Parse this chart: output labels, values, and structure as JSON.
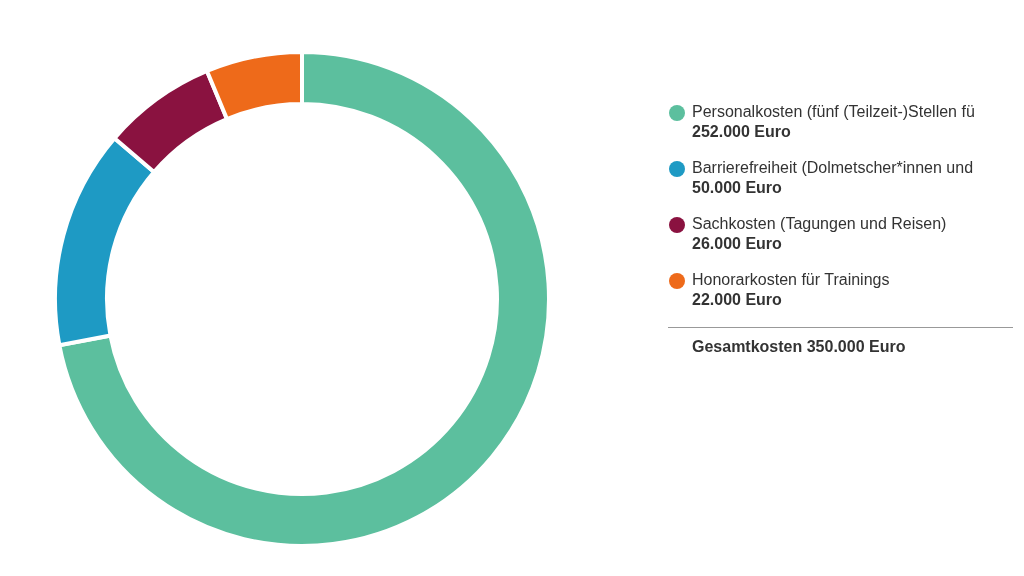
{
  "chart_data": {
    "type": "donut",
    "categories": [
      "Personalkosten (fünf (Teilzeit-)Stellen fü",
      "Barrierefreiheit (Dolmetscher*innen und",
      "Sachkosten (Tagungen und Reisen)",
      "Honorarkosten für Trainings"
    ],
    "values": [
      252000,
      50000,
      26000,
      22000
    ],
    "colors": [
      "#5cbf9e",
      "#1e9ac4",
      "#8a1240",
      "#ee6a1a"
    ],
    "value_labels": [
      "252.000 Euro",
      "50.000 Euro",
      "26.000 Euro",
      "22.000 Euro"
    ],
    "legend": "right",
    "annotations": [
      "Gesamtkosten 350.000 Euro"
    ]
  }
}
